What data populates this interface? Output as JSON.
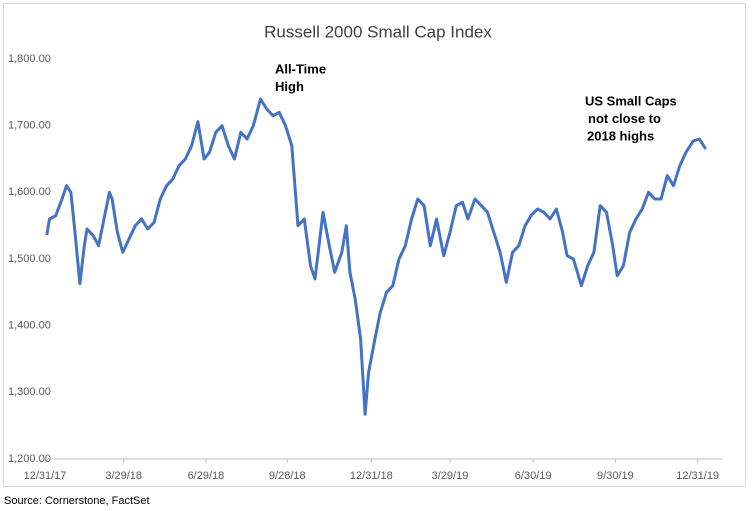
{
  "chart_data": {
    "type": "line",
    "title": "Russell 2000 Small Cap Index",
    "source": "Source:  Cornerstone, FactSet",
    "color": "#4472c4",
    "annotations": [
      {
        "lines": [
          "All-Time",
          "High"
        ]
      },
      {
        "lines": [
          "US Small Caps",
          "not close to",
          "2018  highs"
        ]
      }
    ],
    "x": [
      "2018-01-02",
      "2018-01-05",
      "2018-01-12",
      "2018-01-19",
      "2018-01-24",
      "2018-01-29",
      "2018-02-02",
      "2018-02-08",
      "2018-02-13",
      "2018-02-16",
      "2018-02-23",
      "2018-03-01",
      "2018-03-07",
      "2018-03-13",
      "2018-03-16",
      "2018-03-22",
      "2018-03-28",
      "2018-04-04",
      "2018-04-11",
      "2018-04-18",
      "2018-04-25",
      "2018-05-02",
      "2018-05-09",
      "2018-05-16",
      "2018-05-23",
      "2018-05-30",
      "2018-06-06",
      "2018-06-13",
      "2018-06-20",
      "2018-06-27",
      "2018-07-03",
      "2018-07-10",
      "2018-07-17",
      "2018-07-24",
      "2018-07-31",
      "2018-08-07",
      "2018-08-14",
      "2018-08-21",
      "2018-08-29",
      "2018-09-05",
      "2018-09-12",
      "2018-09-19",
      "2018-09-26",
      "2018-10-03",
      "2018-10-10",
      "2018-10-17",
      "2018-10-24",
      "2018-10-29",
      "2018-11-07",
      "2018-11-14",
      "2018-11-20",
      "2018-11-28",
      "2018-12-03",
      "2018-12-07",
      "2018-12-13",
      "2018-12-19",
      "2018-12-24",
      "2018-12-28",
      "2019-01-04",
      "2019-01-10",
      "2019-01-17",
      "2019-01-24",
      "2019-01-31",
      "2019-02-07",
      "2019-02-14",
      "2019-02-21",
      "2019-02-28",
      "2019-03-07",
      "2019-03-14",
      "2019-03-22",
      "2019-03-29",
      "2019-04-05",
      "2019-04-12",
      "2019-04-18",
      "2019-04-26",
      "2019-05-03",
      "2019-05-10",
      "2019-05-17",
      "2019-05-24",
      "2019-05-31",
      "2019-06-07",
      "2019-06-14",
      "2019-06-21",
      "2019-06-28",
      "2019-07-05",
      "2019-07-12",
      "2019-07-19",
      "2019-07-26",
      "2019-08-02",
      "2019-08-07",
      "2019-08-14",
      "2019-08-23",
      "2019-08-30",
      "2019-09-06",
      "2019-09-13",
      "2019-09-20",
      "2019-09-27",
      "2019-10-02",
      "2019-10-09",
      "2019-10-16",
      "2019-10-23",
      "2019-10-30",
      "2019-11-06",
      "2019-11-13",
      "2019-11-20",
      "2019-11-27",
      "2019-12-04",
      "2019-12-11",
      "2019-12-18",
      "2019-12-26",
      "2020-01-02",
      "2020-01-09"
    ],
    "values": [
      1536,
      1560,
      1565,
      1590,
      1610,
      1600,
      1547,
      1463,
      1520,
      1545,
      1535,
      1520,
      1560,
      1600,
      1590,
      1540,
      1510,
      1530,
      1550,
      1560,
      1545,
      1555,
      1590,
      1610,
      1620,
      1640,
      1650,
      1670,
      1706,
      1650,
      1660,
      1690,
      1700,
      1670,
      1650,
      1690,
      1680,
      1700,
      1740,
      1725,
      1715,
      1720,
      1700,
      1670,
      1550,
      1560,
      1490,
      1470,
      1570,
      1520,
      1480,
      1510,
      1550,
      1480,
      1440,
      1380,
      1267,
      1330,
      1380,
      1420,
      1450,
      1460,
      1500,
      1520,
      1560,
      1590,
      1580,
      1520,
      1560,
      1505,
      1540,
      1580,
      1585,
      1560,
      1590,
      1580,
      1570,
      1540,
      1510,
      1465,
      1510,
      1520,
      1550,
      1566,
      1575,
      1570,
      1560,
      1575,
      1540,
      1505,
      1500,
      1460,
      1490,
      1510,
      1580,
      1570,
      1520,
      1475,
      1490,
      1540,
      1560,
      1575,
      1600,
      1590,
      1590,
      1625,
      1610,
      1640,
      1660,
      1677,
      1680,
      1665
    ],
    "xlim": [
      "2017-12-31",
      "2020-01-25"
    ],
    "xticks": [
      {
        "value": "2017-12-31",
        "label": "12/31/17"
      },
      {
        "value": "2018-03-29",
        "label": "3/29/18"
      },
      {
        "value": "2018-06-29",
        "label": "6/29/18"
      },
      {
        "value": "2018-09-28",
        "label": "9/28/18"
      },
      {
        "value": "2018-12-31",
        "label": "12/31/18"
      },
      {
        "value": "2019-03-29",
        "label": "3/29/19"
      },
      {
        "value": "2019-06-30",
        "label": "6/30/19"
      },
      {
        "value": "2019-09-30",
        "label": "9/30/19"
      },
      {
        "value": "2019-12-31",
        "label": "12/31/19"
      }
    ],
    "ylim": [
      1200,
      1800
    ],
    "yticks": [
      {
        "value": 1200,
        "label": "1,200.00"
      },
      {
        "value": 1300,
        "label": "1,300.00"
      },
      {
        "value": 1400,
        "label": "1,400.00"
      },
      {
        "value": 1500,
        "label": "1,500.00"
      },
      {
        "value": 1600,
        "label": "1,600.00"
      },
      {
        "value": 1700,
        "label": "1,700.00"
      },
      {
        "value": 1800,
        "label": "1,800.00"
      }
    ],
    "grid": false
  }
}
